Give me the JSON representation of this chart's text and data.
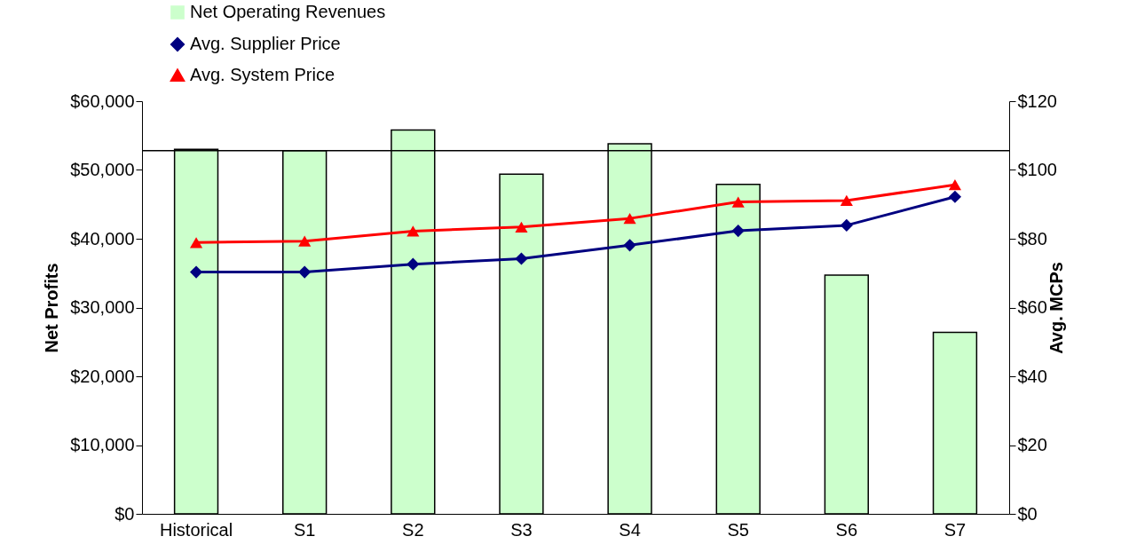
{
  "chart_data": {
    "type": "bar",
    "categories": [
      "Historical",
      "S1",
      "S2",
      "S3",
      "S4",
      "S5",
      "S6",
      "S7"
    ],
    "ylabel": "Net Profits",
    "y2label": "Avg. MCPs",
    "series": [
      {
        "name": "Net Operating Revenues",
        "color": "#ccffcc",
        "values": [
          53000,
          52800,
          55800,
          49400,
          53800,
          47900,
          34700,
          26400
        ]
      },
      {
        "name": "Avg. Supplier Price",
        "type": "line",
        "axis": "y2",
        "color": "#000080",
        "marker": "diamond",
        "values": [
          70.3,
          70.3,
          72.6,
          74.2,
          78.1,
          82.3,
          83.9,
          92.2
        ]
      },
      {
        "name": "Avg. System Price",
        "type": "line",
        "axis": "y2",
        "color": "#ff0000",
        "marker": "triangle",
        "values": [
          78.9,
          79.3,
          82.2,
          83.4,
          85.9,
          90.7,
          91.1,
          95.7
        ]
      }
    ],
    "ylim": [
      0,
      60000
    ],
    "yticks": [
      {
        "value": 0,
        "label": "$0"
      },
      {
        "value": 10000,
        "label": "$10,000"
      },
      {
        "value": 20000,
        "label": "$20,000"
      },
      {
        "value": 30000,
        "label": "$30,000"
      },
      {
        "value": 40000,
        "label": "$40,000"
      },
      {
        "value": 50000,
        "label": "$50,000"
      },
      {
        "value": 60000,
        "label": "$60,000"
      }
    ],
    "y2lim": [
      0,
      120
    ],
    "y2ticks": [
      {
        "value": 0,
        "label": "$0"
      },
      {
        "value": 20,
        "label": "$20"
      },
      {
        "value": 40,
        "label": "$40"
      },
      {
        "value": 60,
        "label": "$60"
      },
      {
        "value": 80,
        "label": "$80"
      },
      {
        "value": 100,
        "label": "$100"
      },
      {
        "value": 120,
        "label": "$120"
      }
    ],
    "ref_lines": [
      {
        "axis": "y",
        "value": 52800,
        "color": "#000000"
      }
    ],
    "legend": "top left",
    "grid": false
  }
}
